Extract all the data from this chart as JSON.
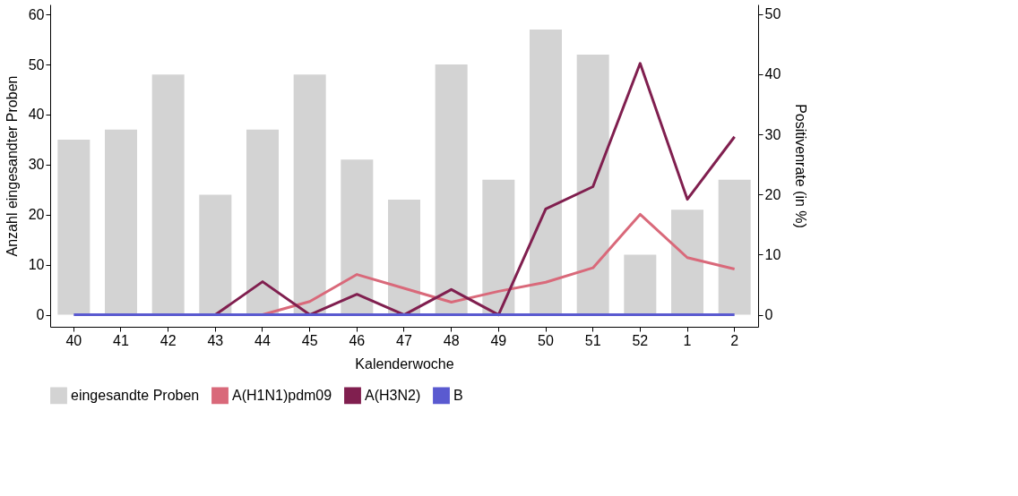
{
  "chart_data": {
    "type": "bar",
    "xlabel": "Kalenderwoche",
    "ylabel": "Anzahl eingesandter Proben",
    "y2label": "Positivenrate (in %)",
    "categories": [
      "40",
      "41",
      "42",
      "43",
      "44",
      "45",
      "46",
      "47",
      "48",
      "49",
      "50",
      "51",
      "52",
      "1",
      "2"
    ],
    "ylim": [
      -2.4,
      62
    ],
    "yticks": [
      0,
      10,
      20,
      30,
      40,
      50,
      60
    ],
    "y2lim": [
      -2,
      51.6
    ],
    "y2ticks": [
      0,
      10,
      20,
      30,
      40,
      50
    ],
    "grid": false,
    "legend": "bottom",
    "series": [
      {
        "name": "eingesandte Proben",
        "color": "#d3d3d3",
        "values": [
          35,
          37,
          48,
          24,
          37,
          48,
          31,
          23,
          50,
          27,
          57,
          52,
          12,
          21,
          27
        ]
      },
      {
        "name": "A(H1N1)pdm09",
        "type": "line",
        "axis": "y2",
        "color": "#d9697a",
        "values": [
          null,
          null,
          null,
          null,
          0,
          2.2,
          6.7,
          4.4,
          2.1,
          3.9,
          5.4,
          7.8,
          16.7,
          9.5,
          7.6
        ]
      },
      {
        "name": "A(H3N2)",
        "type": "line",
        "axis": "y2",
        "color": "#801f4f",
        "values": [
          null,
          null,
          null,
          0,
          5.5,
          0,
          3.4,
          0,
          4.2,
          0,
          17.6,
          21.3,
          41.8,
          19.2,
          29.6
        ]
      },
      {
        "name": "B",
        "type": "line",
        "axis": "y2",
        "color": "#5a5ad0",
        "values": [
          0,
          0,
          0,
          0,
          0,
          0,
          0,
          0,
          0,
          0,
          0,
          0,
          0,
          0,
          0
        ]
      }
    ]
  }
}
